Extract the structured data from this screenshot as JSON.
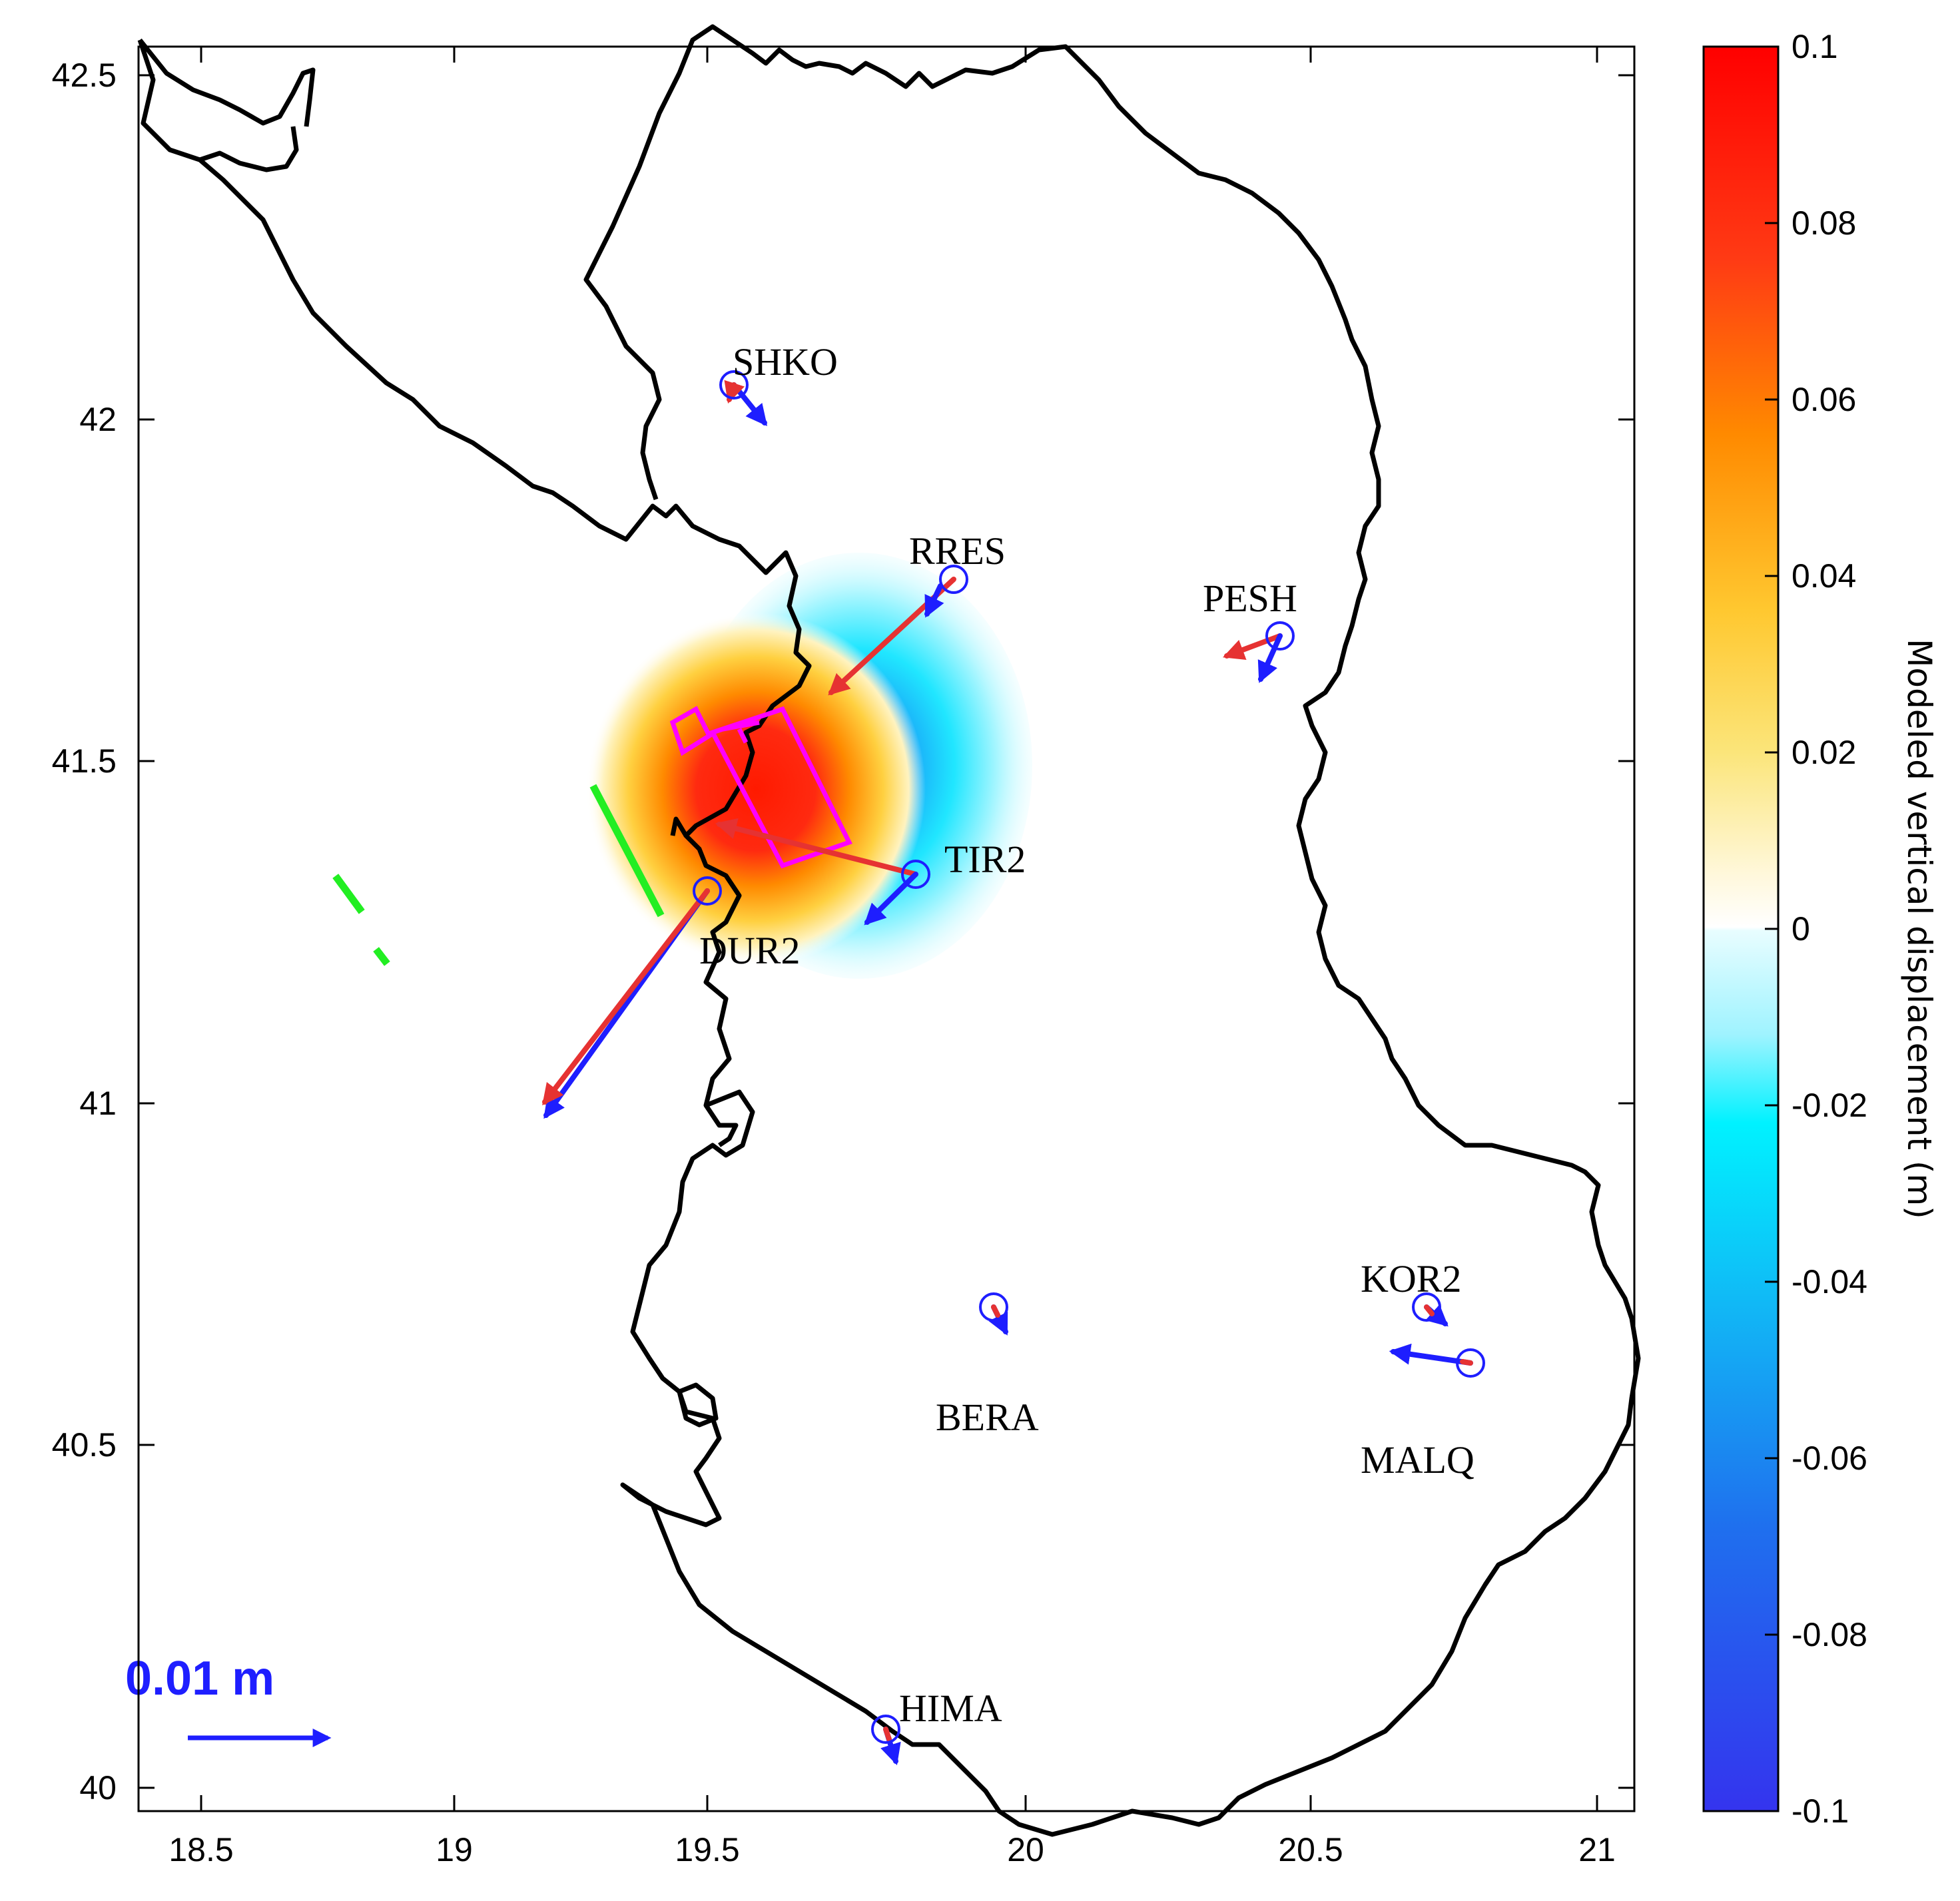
{
  "map": {
    "x_ticks": [
      "18.5",
      "19",
      "19.5",
      "20",
      "20.5",
      "21"
    ],
    "y_ticks": [
      "42.5",
      "42",
      "41.5",
      "41",
      "40.5",
      "40"
    ],
    "xlim": [
      18.48,
      21.06
    ],
    "ylim": [
      39.97,
      42.55
    ]
  },
  "stations": [
    {
      "name": "SHKO",
      "lon": 19.49,
      "lat": 42.05
    },
    {
      "name": "RRES",
      "lon": 19.87,
      "lat": 41.77
    },
    {
      "name": "PESH",
      "lon": 20.44,
      "lat": 41.69
    },
    {
      "name": "TIR2",
      "lon": 19.8,
      "lat": 41.34
    },
    {
      "name": "DUR2",
      "lon": 19.45,
      "lat": 41.31
    },
    {
      "name": "BERA",
      "lon": 19.95,
      "lat": 40.71
    },
    {
      "name": "KOR2",
      "lon": 20.7,
      "lat": 40.71
    },
    {
      "name": "MALQ",
      "lon": 20.78,
      "lat": 40.62
    },
    {
      "name": "HIMA",
      "lon": 19.75,
      "lat": 40.09
    }
  ],
  "colorbar": {
    "title": "Modeled vertical displacement (m)",
    "ticks": [
      "0.1",
      "0.08",
      "0.06",
      "0.04",
      "0.02",
      "0",
      "-0.02",
      "-0.04",
      "-0.06",
      "-0.08",
      "-0.1"
    ]
  },
  "scale_bar": {
    "label": "0.01 m"
  },
  "colors": {
    "observed_vector": "#1e1eff",
    "modeled_vector": "#e63232",
    "fault_outline": "#ff00ff",
    "fault_trace": "#22ee22",
    "coastline": "#000000"
  }
}
